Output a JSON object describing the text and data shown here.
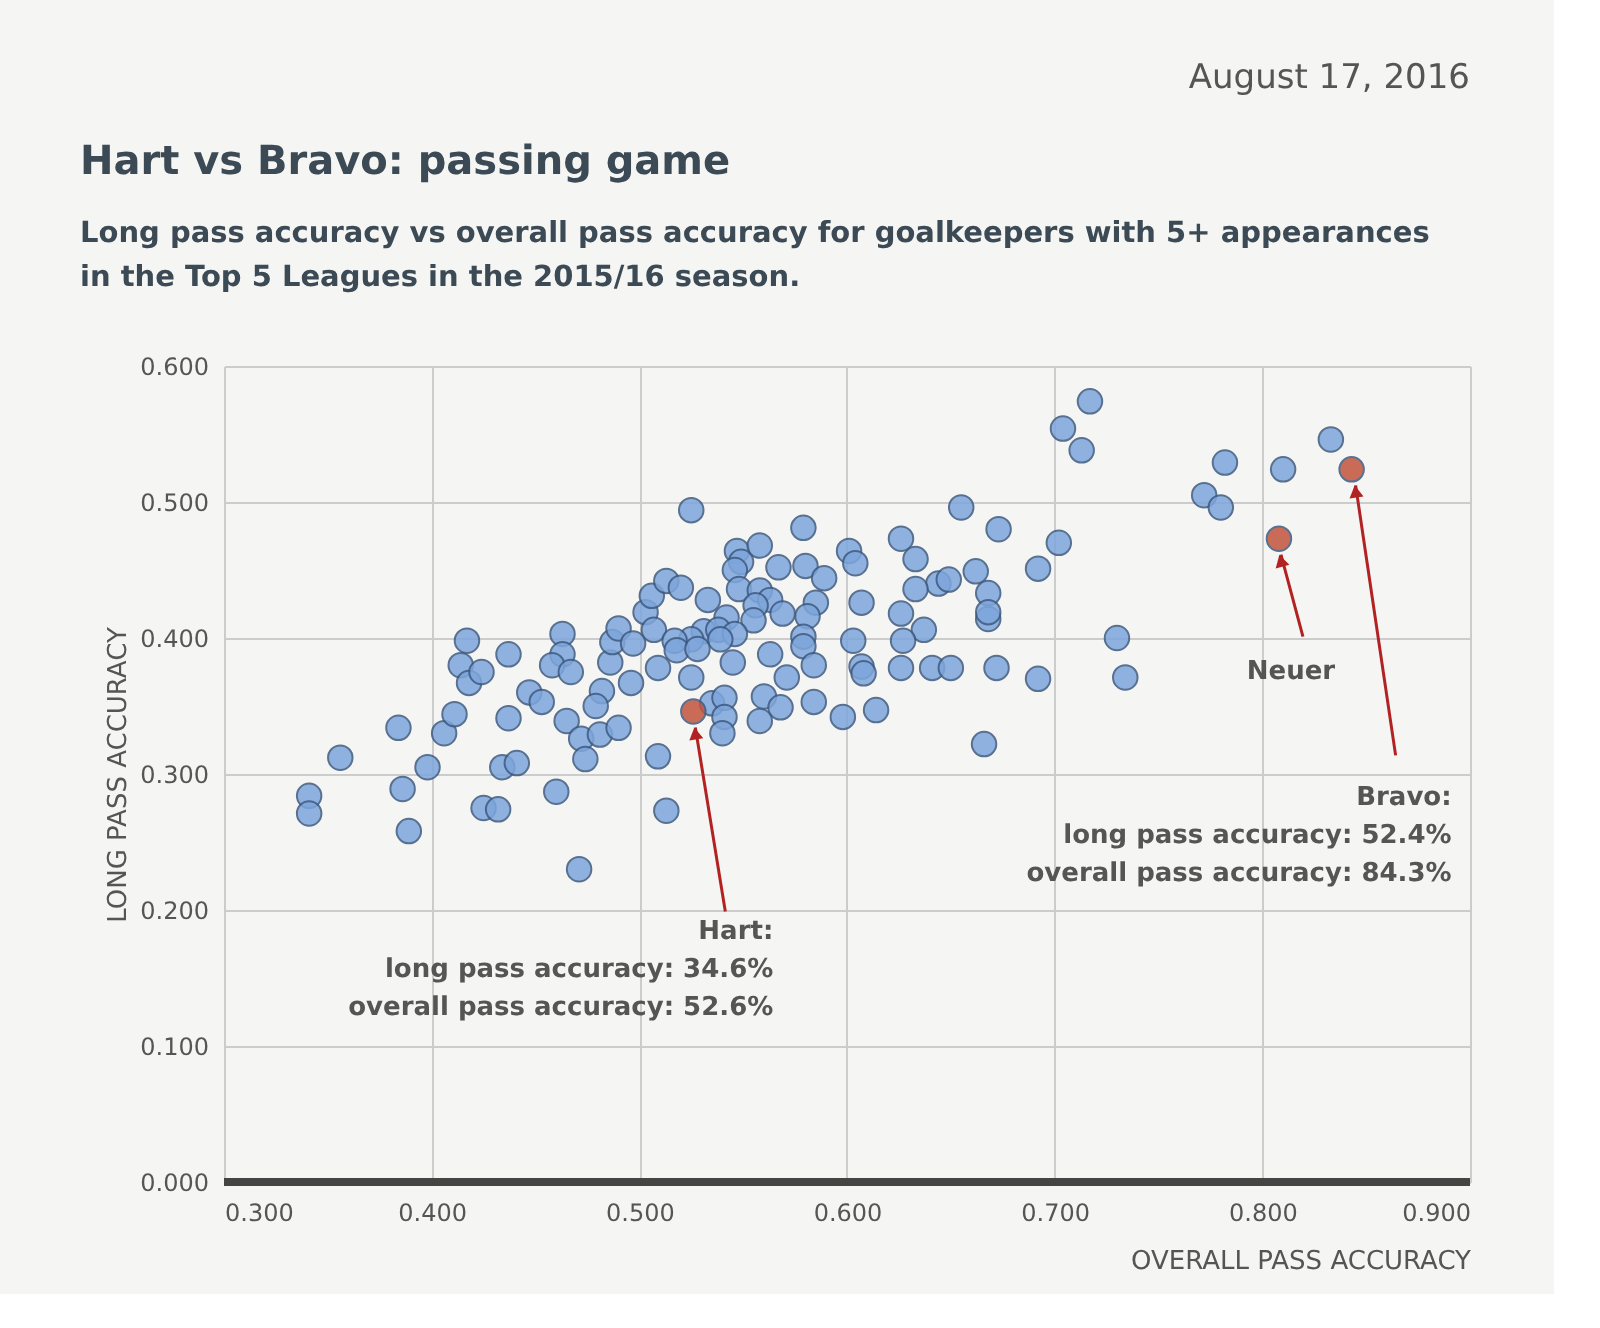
{
  "chart_data": {
    "type": "scatter",
    "title": "Hart vs Bravo: passing game",
    "subtitle": "Long pass accuracy vs overall pass accuracy for goalkeepers with 5+ appearances in the Top 5 Leagues in the 2015/16 season.",
    "xlabel": "OVERALL PASS ACCURACY",
    "ylabel": "LONG PASS ACCURACY",
    "xlim": [
      0.3,
      0.9
    ],
    "ylim": [
      0,
      0.6
    ],
    "xticks": [
      {
        "value": 0.3,
        "label": "0.300"
      },
      {
        "value": 0.4,
        "label": "0.400"
      },
      {
        "value": 0.5,
        "label": "0.500"
      },
      {
        "value": 0.6,
        "label": "0.600"
      },
      {
        "value": 0.7,
        "label": "0.700"
      },
      {
        "value": 0.8,
        "label": "0.800"
      },
      {
        "value": 0.9,
        "label": "0.900"
      }
    ],
    "yticks": [
      {
        "value": 0,
        "label": "0.000"
      },
      {
        "value": 0.1,
        "label": "0.100"
      },
      {
        "value": 0.2,
        "label": "0.200"
      },
      {
        "value": 0.3,
        "label": "0.300"
      },
      {
        "value": 0.4,
        "label": "0.400"
      },
      {
        "value": 0.5,
        "label": "0.500"
      },
      {
        "value": 0.6,
        "label": "0.600"
      }
    ],
    "grid": true,
    "marker": "circle",
    "legend": false,
    "series": [
      {
        "color": "#7ea6dc",
        "x": [
          0.341,
          0.341,
          0.356,
          0.384,
          0.386,
          0.389,
          0.398,
          0.406,
          0.411,
          0.417,
          0.414,
          0.418,
          0.424,
          0.437,
          0.437,
          0.434,
          0.441,
          0.425,
          0.432,
          0.447,
          0.453,
          0.46,
          0.471,
          0.465,
          0.463,
          0.463,
          0.458,
          0.467,
          0.472,
          0.474,
          0.481,
          0.49,
          0.496,
          0.482,
          0.479,
          0.486,
          0.487,
          0.49,
          0.497,
          0.503,
          0.506,
          0.525,
          0.579,
          0.655,
          0.626,
          0.633,
          0.601,
          0.604,
          0.547,
          0.558,
          0.549,
          0.546,
          0.567,
          0.58,
          0.589,
          0.513,
          0.52,
          0.548,
          0.558,
          0.563,
          0.533,
          0.556,
          0.569,
          0.585,
          0.581,
          0.607,
          0.555,
          0.542,
          0.507,
          0.531,
          0.538,
          0.525,
          0.517,
          0.518,
          0.528,
          0.546,
          0.539,
          0.509,
          0.525,
          0.545,
          0.563,
          0.571,
          0.579,
          0.579,
          0.584,
          0.603,
          0.607,
          0.608,
          0.626,
          0.637,
          0.627,
          0.626,
          0.641,
          0.65,
          0.662,
          0.644,
          0.649,
          0.633,
          0.668,
          0.668,
          0.668,
          0.666,
          0.56,
          0.568,
          0.558,
          0.584,
          0.598,
          0.614,
          0.535,
          0.541,
          0.541,
          0.54,
          0.509,
          0.513,
          0.717,
          0.704,
          0.713,
          0.782,
          0.772,
          0.78,
          0.81,
          0.833,
          0.673,
          0.702,
          0.692,
          0.73,
          0.734,
          0.672,
          0.692
        ],
        "values": [
          0.284,
          0.271,
          0.312,
          0.334,
          0.289,
          0.258,
          0.305,
          0.33,
          0.344,
          0.398,
          0.38,
          0.367,
          0.375,
          0.388,
          0.341,
          0.305,
          0.308,
          0.275,
          0.274,
          0.36,
          0.353,
          0.287,
          0.23,
          0.339,
          0.403,
          0.388,
          0.38,
          0.375,
          0.326,
          0.311,
          0.329,
          0.334,
          0.367,
          0.361,
          0.35,
          0.382,
          0.397,
          0.407,
          0.396,
          0.419,
          0.431,
          0.494,
          0.481,
          0.496,
          0.473,
          0.458,
          0.464,
          0.455,
          0.464,
          0.468,
          0.456,
          0.45,
          0.452,
          0.453,
          0.444,
          0.442,
          0.437,
          0.436,
          0.435,
          0.428,
          0.428,
          0.424,
          0.418,
          0.426,
          0.416,
          0.426,
          0.413,
          0.415,
          0.406,
          0.405,
          0.406,
          0.399,
          0.398,
          0.391,
          0.392,
          0.403,
          0.399,
          0.378,
          0.371,
          0.382,
          0.388,
          0.371,
          0.401,
          0.394,
          0.38,
          0.398,
          0.379,
          0.374,
          0.418,
          0.406,
          0.398,
          0.378,
          0.378,
          0.378,
          0.449,
          0.44,
          0.443,
          0.436,
          0.433,
          0.414,
          0.419,
          0.322,
          0.357,
          0.349,
          0.339,
          0.353,
          0.342,
          0.347,
          0.352,
          0.356,
          0.342,
          0.33,
          0.313,
          0.273,
          0.574,
          0.554,
          0.538,
          0.529,
          0.505,
          0.496,
          0.524,
          0.546,
          0.48,
          0.47,
          0.451,
          0.4,
          0.371,
          0.378,
          0.37
        ]
      },
      {
        "color": "#c2543c",
        "x": [
          0.526,
          0.808,
          0.843
        ],
        "values": [
          0.346,
          0.473,
          0.524
        ]
      }
    ],
    "annotations": [
      "August 17, 2016",
      {
        "text": "Hart:\nlong pass accuracy: 34.6%\noverall pass accuracy: 52.6%",
        "x": 0.526,
        "y": 0.346
      },
      {
        "text": "Neuer",
        "x": 0.808,
        "y": 0.473
      },
      {
        "text": "Bravo:\nlong pass accuracy: 52.4%\noverall pass accuracy: 84.3%",
        "x": 0.843,
        "y": 0.524
      }
    ]
  }
}
